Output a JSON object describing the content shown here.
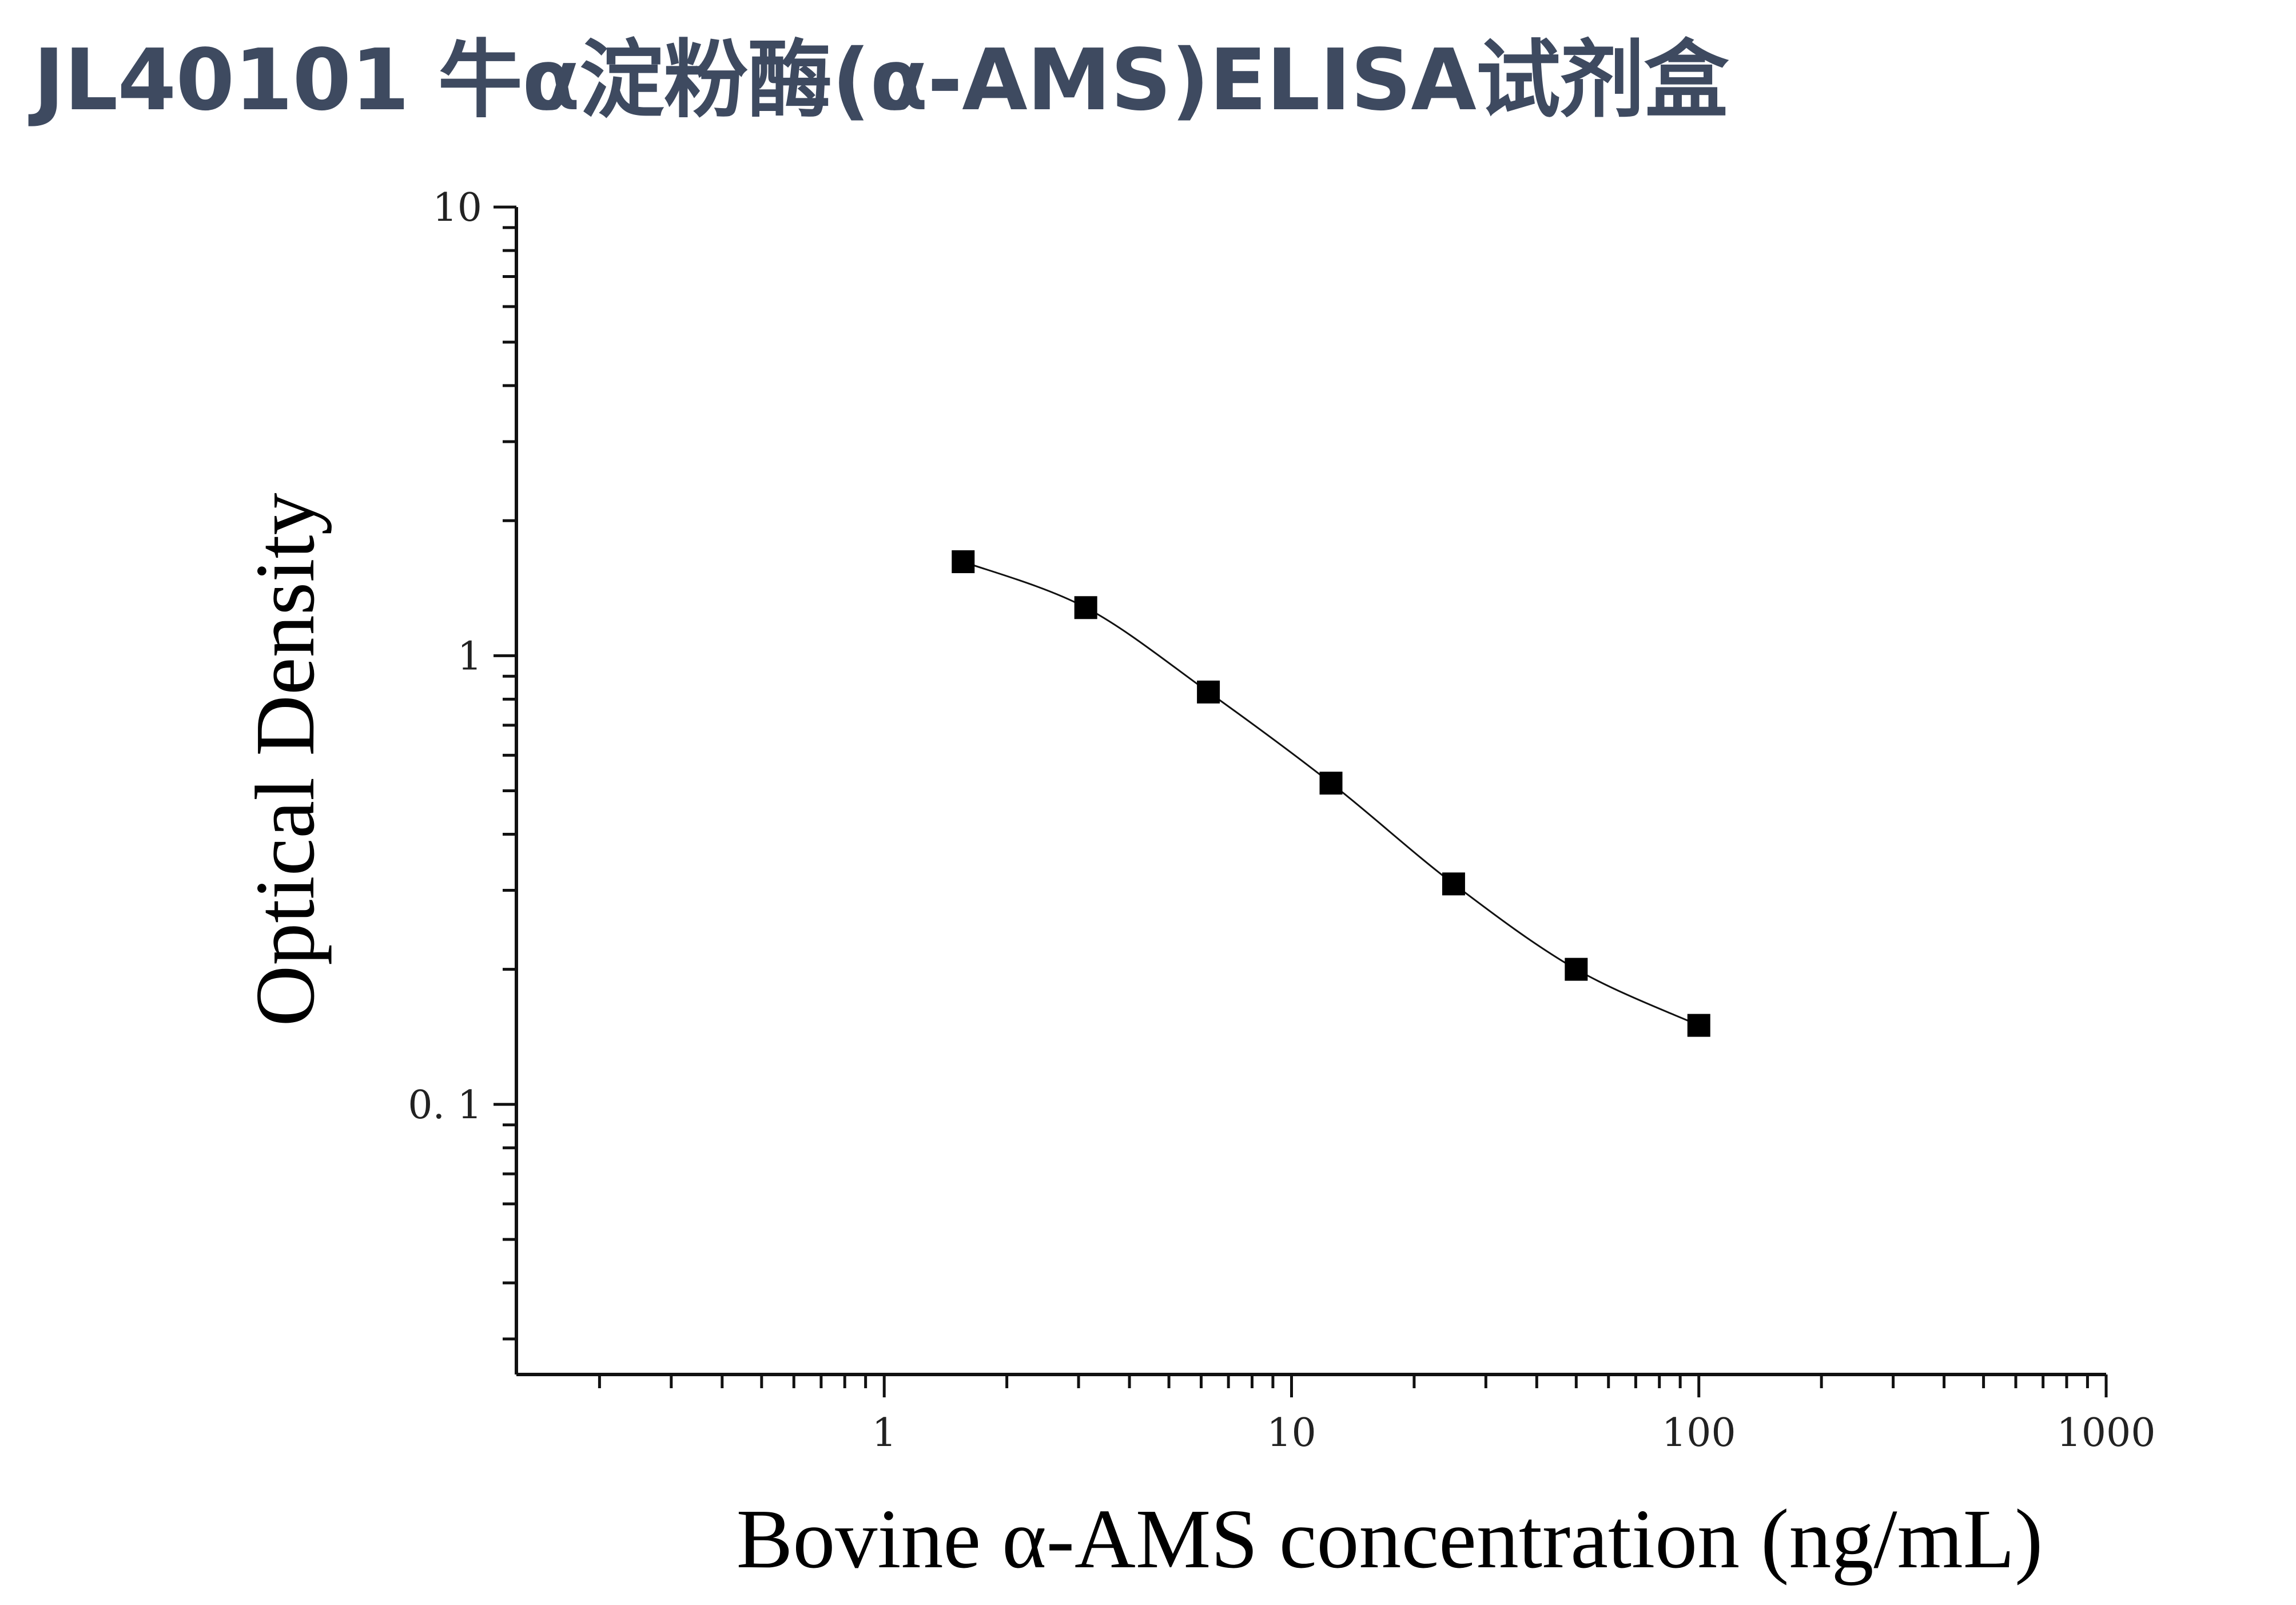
{
  "title": "JL40101 牛α淀粉酶(α-AMS)ELISA试剂盒",
  "colors": {
    "title": "#3e4a60",
    "axis": "#111111",
    "curve": "#111111",
    "marker": "#000000"
  },
  "chart_data": {
    "type": "scatter",
    "title": "",
    "xlabel": "Bovine α-AMS concentration (ng/mL)",
    "ylabel": "Optical Density",
    "x_scale": "log",
    "y_scale": "log",
    "xlim": [
      0.125,
      1000
    ],
    "ylim": [
      0.025,
      10
    ],
    "x_ticks": [
      {
        "value": 1,
        "label": "1"
      },
      {
        "value": 10,
        "label": "10"
      },
      {
        "value": 100,
        "label": "100"
      },
      {
        "value": 1000,
        "label": "1000"
      }
    ],
    "y_ticks": [
      {
        "value": 0.1,
        "label": "0. 1"
      },
      {
        "value": 1,
        "label": "1"
      },
      {
        "value": 10,
        "label": "10"
      }
    ],
    "grid": false,
    "legend": "none",
    "series": [
      {
        "marker": "square",
        "x": [
          1.5625,
          3.125,
          6.25,
          12.5,
          25,
          50,
          100
        ],
        "y": [
          1.62,
          1.28,
          0.83,
          0.52,
          0.31,
          0.2,
          0.15
        ]
      }
    ],
    "fit_curve": "smooth curve through points"
  }
}
